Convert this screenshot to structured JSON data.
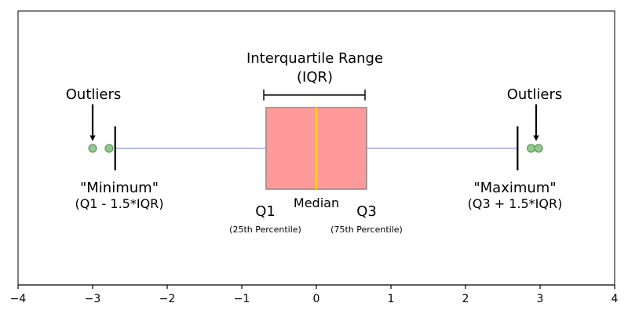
{
  "annotations": {
    "iqr_title_line1": "Interquartile Range",
    "iqr_title_line2": "(IQR)",
    "outliers_left": "Outliers",
    "outliers_right": "Outliers",
    "minimum_label": "\"Minimum\"",
    "minimum_formula": "(Q1 - 1.5*IQR)",
    "maximum_label": "\"Maximum\"",
    "maximum_formula": "(Q3 + 1.5*IQR)",
    "median_label": "Median",
    "q1_label": "Q1",
    "q1_sub": "(25th Percentile)",
    "q3_label": "Q3",
    "q3_sub": "(75th Percentile)"
  },
  "boxplot": {
    "q1": -0.6745,
    "median": 0,
    "q3": 0.6745,
    "whisker_low": -2.698,
    "whisker_high": 2.698,
    "outliers": [
      -3.0,
      -2.78,
      2.88,
      2.98
    ]
  },
  "axis": {
    "xlim": [
      -4,
      4
    ],
    "ticks": [
      -4,
      -3,
      -2,
      -1,
      0,
      1,
      2,
      3,
      4
    ]
  },
  "colors": {
    "box_fill": "#ff9a9a",
    "box_edge": "#8a8a8a",
    "median": "#ffd700",
    "whisker": "#a4a8e0",
    "outlier_fill": "#90c890",
    "outlier_edge": "#4f8f4f",
    "cap": "#000000"
  }
}
